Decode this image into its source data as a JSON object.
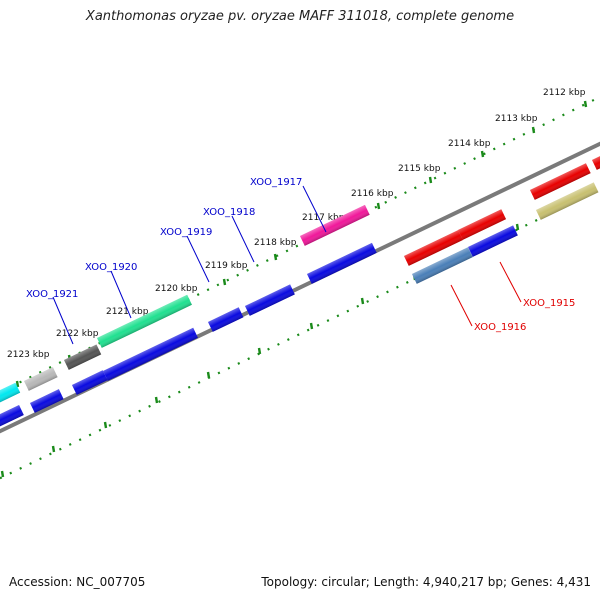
{
  "header": {
    "title": "Xanthomonas oryzae pv. oryzae MAFF 311018, complete genome"
  },
  "footer": {
    "accession": "Accession: NC_007705",
    "summary": "Topology: circular; Length: 4,940,217 bp; Genes: 4,431"
  },
  "ticks": {
    "labels": [
      "2112 kbp",
      "2113 kbp",
      "2114 kbp",
      "2115 kbp",
      "2116 kbp",
      "2117 kbp",
      "2118 kbp",
      "2119 kbp",
      "2120 kbp",
      "2121 kbp",
      "2122 kbp",
      "2123 kbp"
    ],
    "color": "#1a8a1a"
  },
  "genes": [
    {
      "label": "XOO_1915",
      "color": "#e00000"
    },
    {
      "label": "XOO_1916",
      "color": "#e00000"
    },
    {
      "label": "XOO_1917",
      "color": "#0000cc"
    },
    {
      "label": "XOO_1918",
      "color": "#0000cc"
    },
    {
      "label": "XOO_1919",
      "color": "#0000cc"
    },
    {
      "label": "XOO_1920",
      "color": "#0000cc"
    },
    {
      "label": "XOO_1921",
      "color": "#0000cc"
    }
  ],
  "colors": {
    "backbone": "#7a7a7a",
    "blue": "#0a0ae0",
    "red": "#e80000",
    "pink": "#f0189a",
    "green": "#20e090",
    "cyan": "#00e8f0",
    "olive": "#c8c070",
    "steel": "#4a7fb8",
    "gray_dark": "#555555",
    "gray_light": "#b8b8b8"
  }
}
